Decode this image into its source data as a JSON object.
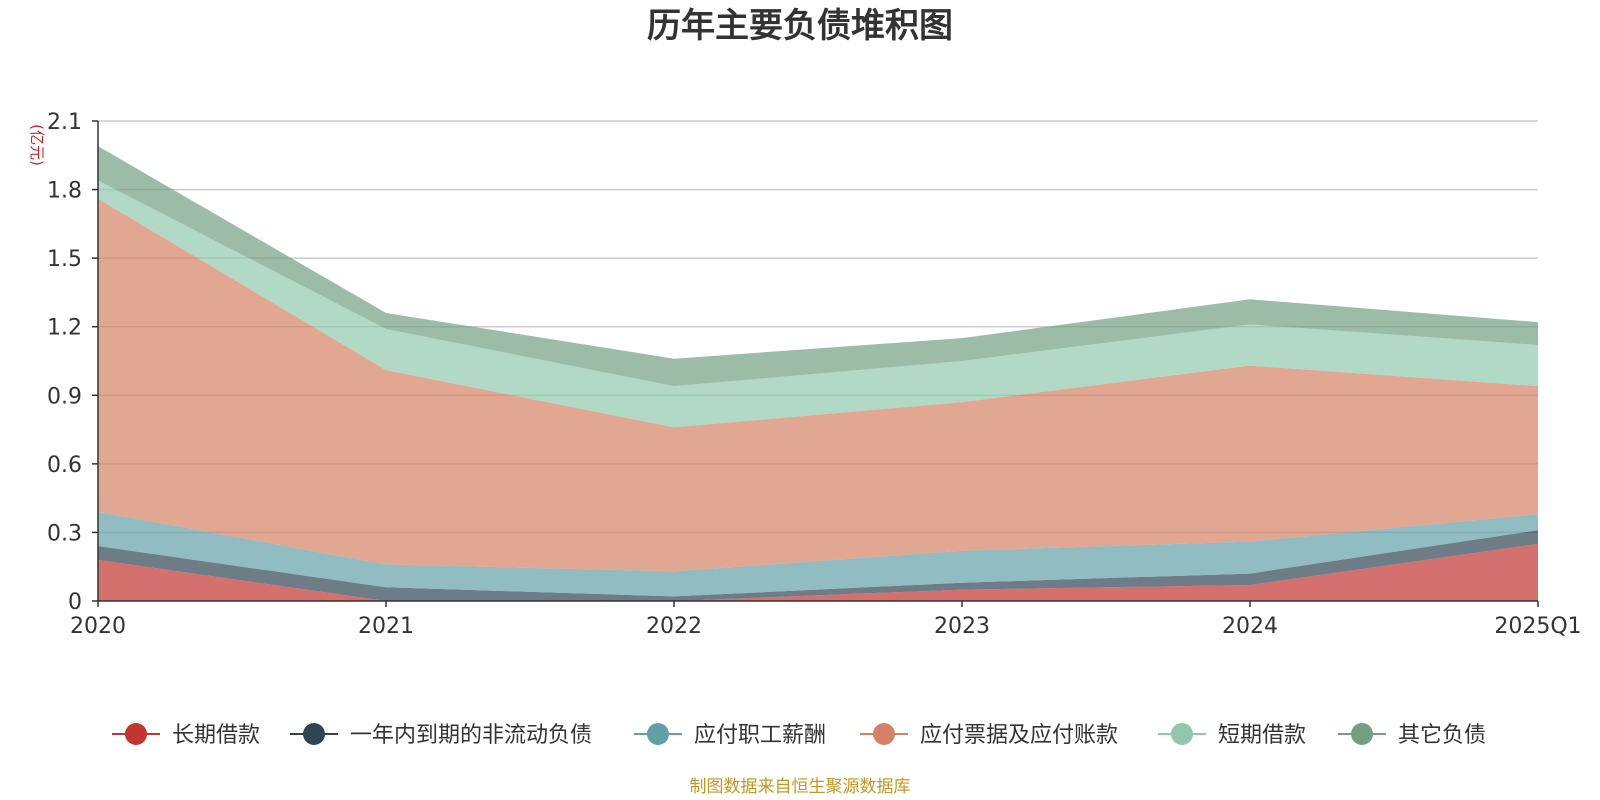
{
  "chart_data": {
    "type": "area",
    "stacked": true,
    "title": "历年主要负债堆积图",
    "ylabel": "(亿元)",
    "xlabel": "",
    "categories": [
      "2020",
      "2021",
      "2022",
      "2023",
      "2024",
      "2025Q1"
    ],
    "ylim": [
      0,
      2.1
    ],
    "yticks": [
      "0",
      "0.3",
      "0.6",
      "0.9",
      "1.2",
      "1.5",
      "1.8",
      "2.1"
    ],
    "ytick_values": [
      0,
      0.3,
      0.6,
      0.9,
      1.2,
      1.5,
      1.8,
      2.1
    ],
    "grid": true,
    "legend_position": "bottom",
    "series": [
      {
        "name": "长期借款",
        "values": [
          0.18,
          0.0,
          0.0,
          0.05,
          0.07,
          0.25
        ],
        "color": "#c23531"
      },
      {
        "name": "一年内到期的非流动负债",
        "values": [
          0.06,
          0.06,
          0.02,
          0.03,
          0.05,
          0.06
        ],
        "color": "#2f4554"
      },
      {
        "name": "应付职工薪酬",
        "values": [
          0.15,
          0.1,
          0.11,
          0.14,
          0.14,
          0.07
        ],
        "color": "#61a0a8"
      },
      {
        "name": "应付票据及应付账款",
        "values": [
          1.37,
          0.85,
          0.63,
          0.65,
          0.77,
          0.56
        ],
        "color": "#d48265"
      },
      {
        "name": "短期借款",
        "values": [
          0.08,
          0.18,
          0.18,
          0.18,
          0.18,
          0.18
        ],
        "color": "#91c7ae"
      },
      {
        "name": "其它负债",
        "values": [
          0.15,
          0.07,
          0.12,
          0.1,
          0.11,
          0.1
        ],
        "color": "#749f83"
      }
    ],
    "source_note": "制图数据来自恒生聚源数据库"
  }
}
